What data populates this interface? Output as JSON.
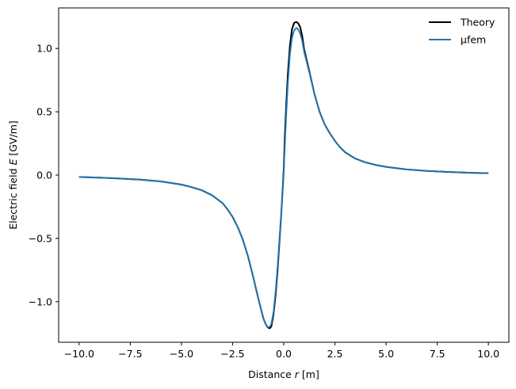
{
  "chart_data": {
    "type": "line",
    "xlabel": {
      "prefix": "Distance ",
      "var": "r",
      "suffix": " [m]"
    },
    "ylabel": {
      "prefix": "Electric field ",
      "var": "E",
      "suffix": " [GV/m]"
    },
    "xlim": [
      -11.0,
      11.0
    ],
    "ylim": [
      -1.32,
      1.32
    ],
    "xticks": [
      -10.0,
      -7.5,
      -5.0,
      -2.5,
      0.0,
      2.5,
      5.0,
      7.5,
      10.0
    ],
    "xtick_labels": [
      "−10.0",
      "−7.5",
      "−5.0",
      "−2.5",
      "0.0",
      "2.5",
      "5.0",
      "7.5",
      "10.0"
    ],
    "yticks": [
      -1.0,
      -0.5,
      0.0,
      0.5,
      1.0
    ],
    "ytick_labels": [
      "−1.0",
      "−0.5",
      "0.0",
      "0.5",
      "1.0"
    ],
    "grid": false,
    "legend": "top-right",
    "series": [
      {
        "name": "Theory",
        "color": "#000000",
        "x": [
          -10,
          -9,
          -8,
          -7,
          -6,
          -5,
          -4.5,
          -4,
          -3.5,
          -3,
          -2.75,
          -2.5,
          -2.25,
          -2,
          -1.75,
          -1.5,
          -1.25,
          -1,
          -0.9,
          -0.8,
          -0.7,
          -0.65,
          -0.6,
          -0.5,
          -0.4,
          -0.3,
          -0.2,
          -0.12,
          -0.05,
          0,
          0.05,
          0.12,
          0.2,
          0.3,
          0.4,
          0.5,
          0.6,
          0.65,
          0.7,
          0.8,
          0.9,
          1,
          1.25,
          1.5,
          1.75,
          2,
          2.25,
          2.5,
          2.75,
          3,
          3.5,
          4,
          4.5,
          5,
          6,
          7,
          8,
          9,
          10
        ],
        "y": [
          -0.015,
          -0.02,
          -0.027,
          -0.036,
          -0.05,
          -0.075,
          -0.095,
          -0.12,
          -0.16,
          -0.22,
          -0.27,
          -0.33,
          -0.41,
          -0.51,
          -0.64,
          -0.8,
          -0.97,
          -1.13,
          -1.17,
          -1.2,
          -1.21,
          -1.205,
          -1.19,
          -1.1,
          -0.95,
          -0.75,
          -0.5,
          -0.3,
          -0.1,
          0.05,
          0.3,
          0.55,
          0.8,
          1.02,
          1.15,
          1.2,
          1.21,
          1.205,
          1.2,
          1.17,
          1.1,
          0.99,
          0.82,
          0.64,
          0.5,
          0.4,
          0.33,
          0.27,
          0.22,
          0.18,
          0.13,
          0.1,
          0.08,
          0.065,
          0.045,
          0.033,
          0.025,
          0.019,
          0.015
        ]
      },
      {
        "name": "μfem",
        "color": "#1f77b4",
        "x": [
          -10,
          -9,
          -8,
          -7,
          -6,
          -5,
          -4.5,
          -4,
          -3.5,
          -3,
          -2.75,
          -2.5,
          -2.25,
          -2,
          -1.75,
          -1.5,
          -1.25,
          -1,
          -0.9,
          -0.8,
          -0.7,
          -0.65,
          -0.6,
          -0.5,
          -0.4,
          -0.3,
          -0.2,
          -0.12,
          -0.05,
          0,
          0.05,
          0.12,
          0.2,
          0.3,
          0.4,
          0.5,
          0.6,
          0.65,
          0.7,
          0.8,
          0.9,
          1,
          1.25,
          1.5,
          1.75,
          2,
          2.25,
          2.5,
          2.75,
          3,
          3.5,
          4,
          4.5,
          5,
          6,
          7,
          8,
          9,
          10
        ],
        "y": [
          -0.015,
          -0.02,
          -0.027,
          -0.036,
          -0.05,
          -0.075,
          -0.095,
          -0.12,
          -0.16,
          -0.22,
          -0.27,
          -0.33,
          -0.41,
          -0.51,
          -0.64,
          -0.8,
          -0.97,
          -1.13,
          -1.17,
          -1.2,
          -1.2,
          -1.19,
          -1.17,
          -1.08,
          -0.92,
          -0.72,
          -0.48,
          -0.3,
          -0.12,
          0.02,
          0.22,
          0.47,
          0.72,
          0.95,
          1.08,
          1.14,
          1.16,
          1.16,
          1.15,
          1.12,
          1.06,
          0.97,
          0.81,
          0.64,
          0.5,
          0.4,
          0.33,
          0.27,
          0.22,
          0.18,
          0.13,
          0.1,
          0.08,
          0.065,
          0.045,
          0.033,
          0.025,
          0.019,
          0.015
        ]
      }
    ]
  }
}
